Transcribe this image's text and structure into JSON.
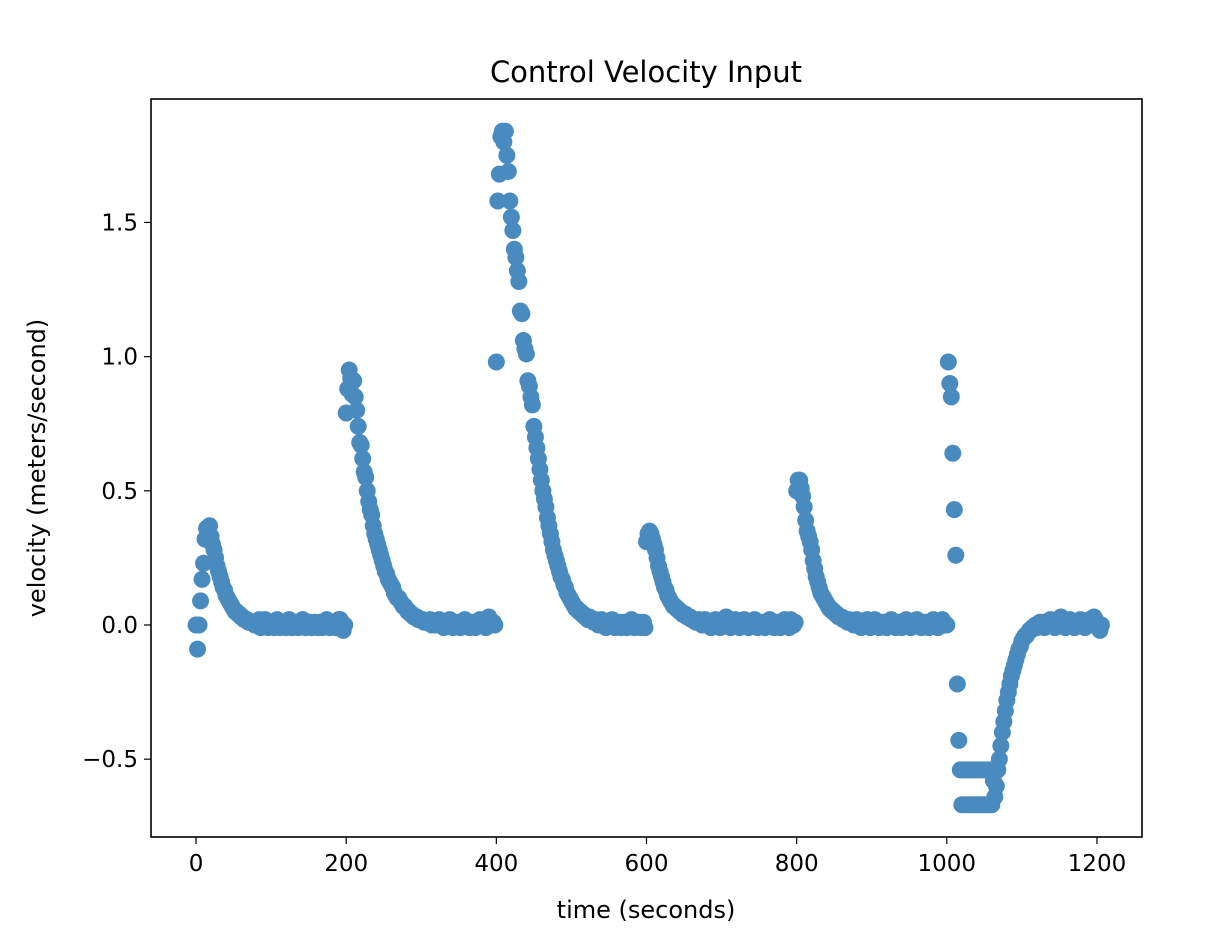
{
  "chart_data": {
    "type": "scatter",
    "title": "Control Velocity Input",
    "xlabel": "time (seconds)",
    "ylabel": "velocity (meters/second)",
    "xlim": [
      -60,
      1260
    ],
    "ylim": [
      -0.79,
      1.96
    ],
    "xticks": [
      0,
      200,
      400,
      600,
      800,
      1000,
      1200
    ],
    "yticks": [
      -0.5,
      0.0,
      0.5,
      1.0,
      1.5
    ],
    "xtick_labels": [
      "0",
      "200",
      "400",
      "600",
      "800",
      "1000",
      "1200"
    ],
    "ytick_labels": [
      "−0.5",
      "0.0",
      "0.5",
      "1.0",
      "1.5"
    ],
    "grid": false,
    "legend": "none",
    "marker_color": "#3e86bd",
    "sample_interval_seconds": 2,
    "series": [
      {
        "x_start": 0,
        "x_end": 198,
        "y": [
          0.0,
          -0.09,
          0.0,
          0.09,
          0.17,
          0.23,
          0.32,
          0.36,
          0.35,
          0.37,
          0.33,
          0.3,
          0.28,
          0.25,
          0.22,
          0.2,
          0.18,
          0.16,
          0.14,
          0.13,
          0.11,
          0.1,
          0.09,
          0.08,
          0.07,
          0.06,
          0.05,
          0.05,
          0.04,
          0.04,
          0.03,
          0.03,
          0.02,
          0.02,
          0.02,
          0.01,
          0.01,
          0.01,
          0.01,
          0.0,
          0.01,
          0.0,
          0.02,
          -0.01,
          0.01,
          0.0,
          0.02,
          0.0,
          -0.01,
          0.01,
          0.0,
          0.01,
          -0.01,
          0.0,
          0.02,
          0.0,
          -0.01,
          0.01,
          0.0,
          0.01,
          -0.01,
          0.0,
          0.02,
          0.01,
          -0.01,
          0.0,
          0.01,
          0.0,
          -0.01,
          0.01,
          0.0,
          0.02,
          0.0,
          -0.01,
          0.01,
          0.0,
          0.01,
          -0.01,
          0.0,
          0.01,
          0.0,
          -0.01,
          0.01,
          0.0,
          -0.01,
          0.01,
          0.0,
          0.02,
          0.0,
          -0.01,
          0.01,
          0.0,
          0.01,
          -0.01,
          0.0,
          0.02,
          0.02,
          0.01,
          -0.02,
          0.0
        ]
      },
      {
        "x_start": 200,
        "x_end": 398,
        "y": [
          0.79,
          0.88,
          0.95,
          0.92,
          0.86,
          0.91,
          0.85,
          0.8,
          0.74,
          0.68,
          0.67,
          0.62,
          0.57,
          0.55,
          0.5,
          0.46,
          0.43,
          0.41,
          0.37,
          0.34,
          0.32,
          0.3,
          0.28,
          0.26,
          0.24,
          0.22,
          0.2,
          0.19,
          0.17,
          0.16,
          0.15,
          0.14,
          0.12,
          0.11,
          0.1,
          0.1,
          0.09,
          0.08,
          0.07,
          0.07,
          0.06,
          0.05,
          0.05,
          0.04,
          0.04,
          0.03,
          0.03,
          0.03,
          0.02,
          0.02,
          0.02,
          0.02,
          0.01,
          0.01,
          0.01,
          0.01,
          0.02,
          0.0,
          0.01,
          0.0,
          0.01,
          0.0,
          0.02,
          0.0,
          0.01,
          -0.01,
          0.0,
          0.01,
          0.0,
          0.02,
          0.0,
          -0.01,
          0.01,
          0.0,
          0.01,
          0.0,
          -0.01,
          0.01,
          0.0,
          0.02,
          0.0,
          0.01,
          -0.01,
          0.0,
          0.01,
          0.0,
          -0.01,
          0.01,
          0.0,
          0.02,
          0.0,
          0.01,
          0.0,
          -0.01,
          0.02,
          0.03,
          0.01,
          0.0,
          0.01,
          0.0
        ]
      },
      {
        "x_start": 400,
        "x_end": 598,
        "y": [
          0.98,
          1.58,
          1.68,
          1.82,
          1.84,
          1.8,
          1.84,
          1.75,
          1.69,
          1.58,
          1.52,
          1.47,
          1.4,
          1.37,
          1.32,
          1.28,
          1.17,
          1.16,
          1.06,
          1.03,
          1.01,
          0.91,
          0.89,
          0.85,
          0.82,
          0.74,
          0.7,
          0.66,
          0.62,
          0.58,
          0.54,
          0.5,
          0.47,
          0.44,
          0.4,
          0.37,
          0.34,
          0.31,
          0.28,
          0.26,
          0.24,
          0.22,
          0.2,
          0.18,
          0.17,
          0.15,
          0.14,
          0.12,
          0.11,
          0.1,
          0.09,
          0.08,
          0.07,
          0.06,
          0.06,
          0.05,
          0.05,
          0.04,
          0.04,
          0.03,
          0.03,
          0.02,
          0.03,
          0.02,
          0.02,
          0.01,
          0.02,
          0.01,
          0.0,
          0.01,
          0.02,
          0.0,
          0.01,
          -0.01,
          0.0,
          0.01,
          0.0,
          0.02,
          0.0,
          -0.01,
          0.01,
          0.0,
          0.01,
          -0.01,
          0.0,
          0.01,
          0.0,
          -0.01,
          0.01,
          0.0,
          0.02,
          0.0,
          -0.01,
          0.01,
          0.0,
          0.01,
          -0.01,
          0.0,
          0.01,
          -0.01
        ]
      },
      {
        "x_start": 600,
        "x_end": 798,
        "y": [
          0.31,
          0.34,
          0.35,
          0.34,
          0.32,
          0.3,
          0.28,
          0.25,
          0.22,
          0.2,
          0.18,
          0.16,
          0.14,
          0.13,
          0.11,
          0.1,
          0.09,
          0.08,
          0.07,
          0.07,
          0.06,
          0.06,
          0.05,
          0.05,
          0.04,
          0.04,
          0.04,
          0.03,
          0.03,
          0.03,
          0.02,
          0.02,
          0.02,
          0.01,
          0.01,
          0.02,
          0.01,
          0.0,
          0.01,
          0.02,
          0.0,
          0.01,
          0.0,
          -0.01,
          0.01,
          0.0,
          0.02,
          0.0,
          0.01,
          -0.01,
          0.0,
          0.01,
          0.02,
          0.03,
          0.02,
          0.0,
          -0.01,
          0.01,
          0.0,
          0.02,
          0.0,
          0.01,
          -0.01,
          0.0,
          0.01,
          0.02,
          0.0,
          0.01,
          -0.01,
          0.0,
          0.01,
          0.0,
          0.02,
          0.0,
          -0.01,
          0.01,
          0.0,
          0.01,
          0.0,
          -0.01,
          0.01,
          0.0,
          0.02,
          0.0,
          0.01,
          -0.01,
          0.0,
          0.01,
          0.0,
          -0.01,
          0.01,
          0.0,
          0.02,
          0.0,
          0.01,
          -0.01,
          0.02,
          0.01,
          0.0,
          0.01
        ]
      },
      {
        "x_start": 800,
        "x_end": 998,
        "y": [
          0.5,
          0.54,
          0.54,
          0.51,
          0.48,
          0.44,
          0.39,
          0.35,
          0.33,
          0.31,
          0.28,
          0.24,
          0.21,
          0.18,
          0.16,
          0.14,
          0.12,
          0.11,
          0.1,
          0.09,
          0.08,
          0.07,
          0.06,
          0.06,
          0.05,
          0.05,
          0.04,
          0.04,
          0.03,
          0.03,
          0.03,
          0.02,
          0.02,
          0.02,
          0.01,
          0.02,
          0.01,
          0.01,
          0.0,
          0.01,
          0.02,
          0.0,
          0.01,
          -0.01,
          0.0,
          0.01,
          0.0,
          0.02,
          0.0,
          -0.01,
          0.01,
          0.0,
          0.02,
          0.01,
          0.0,
          -0.01,
          0.01,
          0.0,
          0.01,
          0.0,
          -0.01,
          0.01,
          0.0,
          0.02,
          0.0,
          0.01,
          -0.01,
          0.0,
          0.01,
          0.0,
          -0.01,
          0.01,
          0.0,
          0.02,
          0.0,
          0.01,
          -0.01,
          0.0,
          0.01,
          0.0,
          0.02,
          0.01,
          0.0,
          -0.01,
          0.01,
          0.0,
          0.01,
          0.0,
          -0.01,
          0.01,
          0.0,
          0.02,
          0.0,
          0.01,
          -0.01,
          0.0,
          0.01,
          0.02,
          0.01,
          0.0
        ]
      },
      {
        "x_start": 1000,
        "x_end": 1066,
        "y": [
          0.0,
          0.98,
          0.9,
          0.85,
          0.64,
          0.43,
          0.26,
          -0.22,
          -0.43,
          -0.54,
          -0.67,
          -0.54,
          -0.67,
          -0.54,
          -0.67,
          -0.54,
          -0.67,
          -0.54,
          -0.67,
          -0.54,
          -0.67,
          -0.54,
          -0.67,
          -0.54,
          -0.67,
          -0.54,
          -0.67,
          -0.54,
          -0.67,
          -0.54,
          -0.67,
          -0.58,
          -0.64,
          -0.6
        ]
      },
      {
        "x_start": 1068,
        "x_end": 1206,
        "y": [
          -0.54,
          -0.5,
          -0.45,
          -0.4,
          -0.36,
          -0.32,
          -0.28,
          -0.25,
          -0.22,
          -0.19,
          -0.17,
          -0.15,
          -0.13,
          -0.11,
          -0.09,
          -0.08,
          -0.06,
          -0.05,
          -0.04,
          -0.04,
          -0.03,
          -0.02,
          -0.02,
          -0.01,
          -0.01,
          0.0,
          -0.01,
          0.0,
          0.01,
          0.0,
          0.01,
          -0.01,
          0.0,
          0.01,
          0.0,
          0.02,
          0.0,
          0.01,
          -0.01,
          0.0,
          0.01,
          0.02,
          0.03,
          0.01,
          0.0,
          -0.01,
          0.01,
          0.0,
          0.02,
          0.0,
          0.01,
          -0.01,
          0.0,
          0.01,
          0.0,
          0.02,
          0.0,
          0.01,
          -0.01,
          0.0,
          0.01,
          0.02,
          0.0,
          0.01,
          0.03,
          0.02,
          0.01,
          0.0,
          -0.02,
          0.0
        ]
      }
    ]
  }
}
